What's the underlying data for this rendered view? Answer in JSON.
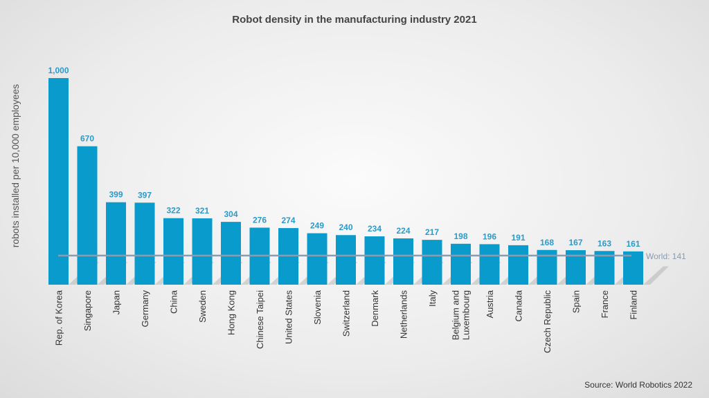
{
  "chart_data": {
    "type": "bar",
    "title": "Robot density in the manufacturing industry 2021",
    "ylabel": "robots installed per 10,000 employees",
    "categories": [
      "Rep. of Korea",
      "Singapore",
      "Japan",
      "Germany",
      "China",
      "Sweden",
      "Hong Kong",
      "Chinese Taipei",
      "United States",
      "Slovenia",
      "Switzerland",
      "Denmark",
      "Netherlands",
      "Italy",
      "Belgium and Luxembourg",
      "Austria",
      "Canada",
      "Czech Republic",
      "Spain",
      "France",
      "Finland"
    ],
    "values": [
      1000,
      670,
      399,
      397,
      322,
      321,
      304,
      276,
      274,
      249,
      240,
      234,
      224,
      217,
      198,
      196,
      191,
      168,
      167,
      163,
      161
    ],
    "data_labels": [
      "1,000",
      "670",
      "399",
      "397",
      "322",
      "321",
      "304",
      "276",
      "274",
      "249",
      "240",
      "234",
      "224",
      "217",
      "198",
      "196",
      "191",
      "168",
      "167",
      "163",
      "161"
    ],
    "reference_line": {
      "label": "World: 141",
      "value": 141,
      "color": "#8a9bb0"
    },
    "ylim": [
      0,
      1000
    ],
    "grid": false,
    "bar_color": "#0a9bcd",
    "label_color": "#2a9bc8",
    "source": "Source: World Robotics 2022"
  }
}
